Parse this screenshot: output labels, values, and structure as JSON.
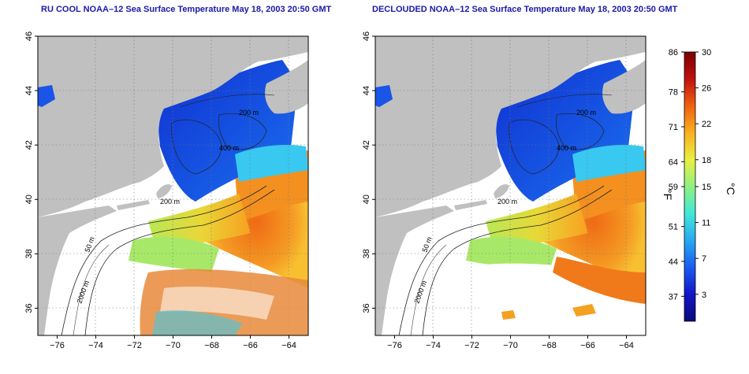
{
  "panels": [
    {
      "title": "RU COOL NOAA–12 Sea Surface Temperature May 18, 2003 20:50 GMT",
      "contour_labels": [
        "200 m",
        "400 m",
        "50 m",
        "2000 m",
        "200 m"
      ]
    },
    {
      "title": "DECLOUDED NOAA–12 Sea Surface Temperature May 18, 2003 20:50 GMT",
      "contour_labels": [
        "200 m",
        "400 m",
        "50 m",
        "2000 m",
        "200 m"
      ]
    }
  ],
  "axes": {
    "x_ticks": [
      "−76",
      "−74",
      "−72",
      "−70",
      "−68",
      "−66",
      "−64"
    ],
    "y_ticks": [
      "46",
      "44",
      "42",
      "40",
      "38",
      "36"
    ],
    "lon_range": [
      -77,
      -63
    ],
    "lat_range": [
      35,
      46
    ]
  },
  "colorbar": {
    "fahrenheit_ticks": [
      "86",
      "78",
      "71",
      "64",
      "59",
      "51",
      "44",
      "37"
    ],
    "celsius_ticks": [
      "30",
      "26",
      "22",
      "18",
      "15",
      "11",
      "7",
      "3"
    ],
    "fahrenheit_unit": "°F",
    "celsius_unit": "°C",
    "range_c": [
      0,
      30
    ],
    "stops": [
      "#0a0a7a",
      "#1414c8",
      "#1a5cf0",
      "#28a8f0",
      "#40e8d8",
      "#90f080",
      "#e8f040",
      "#f8b020",
      "#f06010",
      "#c01010",
      "#7a0000"
    ]
  },
  "colors": {
    "land": "#c0c0c0",
    "no_data": "#ffffff",
    "cold_water": "#1a55e8",
    "warm_water": "#f07a1a",
    "title": "#1a1aa8"
  }
}
